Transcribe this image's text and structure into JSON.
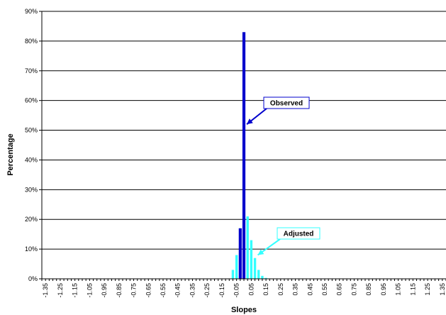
{
  "chart_data": {
    "type": "bar",
    "title": "",
    "xlabel": "Slopes",
    "ylabel": "Percentage",
    "ylim": [
      0,
      90
    ],
    "y_ticks": [
      "0%",
      "10%",
      "20%",
      "30%",
      "40%",
      "50%",
      "60%",
      "70%",
      "80%",
      "90%"
    ],
    "x_range": [
      -1.375,
      1.375
    ],
    "bin_width": 0.025,
    "x_tick_labels": [
      "-1.35",
      "-1.25",
      "-1.15",
      "-1.05",
      "-0.95",
      "-0.85",
      "-0.75",
      "-0.65",
      "-0.55",
      "-0.45",
      "-0.35",
      "-0.25",
      "-0.15",
      "-0.05",
      "0.05",
      "0.15",
      "0.25",
      "0.35",
      "0.45",
      "0.55",
      "0.65",
      "0.75",
      "0.85",
      "0.95",
      "1.05",
      "1.15",
      "1.25",
      "1.35"
    ],
    "grid": "horizontal",
    "series": [
      {
        "name": "Observed",
        "color": "#0000cc",
        "x": [
          -0.025,
          0.0
        ],
        "values": [
          17,
          83
        ]
      },
      {
        "name": "Adjusted",
        "color": "#33ffff",
        "x": [
          -0.075,
          -0.05,
          -0.025,
          0.0,
          0.025,
          0.05,
          0.075,
          0.1,
          0.125,
          0.15
        ],
        "values": [
          3,
          8,
          17,
          25,
          21,
          13,
          7,
          3,
          1,
          0.3
        ]
      }
    ],
    "annotations": [
      {
        "text": "Observed",
        "target_x": 0.0,
        "target_y": 52
      },
      {
        "text": "Adjusted",
        "target_x": 0.075,
        "target_y": 8
      }
    ]
  }
}
